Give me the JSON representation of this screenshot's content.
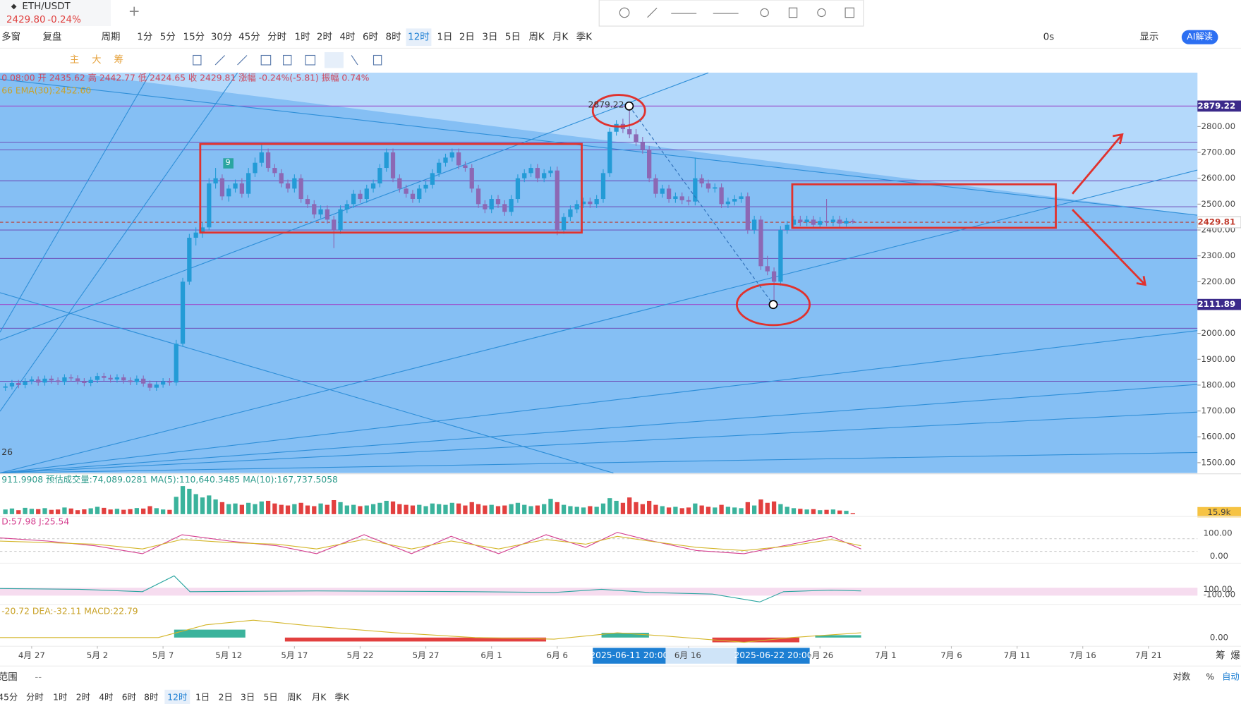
{
  "ui": {
    "tab": {
      "symbol": "ETH/USDT",
      "price": "2429.80",
      "change": "-0.24%"
    },
    "toolbar": {
      "multi": "多窗",
      "replay": "复盘",
      "period": "周期",
      "intervals": [
        "1分",
        "5分",
        "15分",
        "30分",
        "45分",
        "分时",
        "1时",
        "2时",
        "4时",
        "6时",
        "8时",
        "12时",
        "1日",
        "2日",
        "3日",
        "5日",
        "周K",
        "月K",
        "季K"
      ],
      "countdown": "0s",
      "display": "显示",
      "ai": "AI解读"
    },
    "tools": [
      "主",
      "大",
      "筹"
    ],
    "ohlc_info": "0 08:00  开 2435.62  高 2442.77  低 2424.65  收 2429.81  涨幅 -0.24%(-5.81)  振幅 0.74%",
    "ema_info": "66  EMA(30):2452.60",
    "marker": "9",
    "peak_label": "2879.22",
    "chart_note": "26",
    "volume_info": "911.9908  预估成交量:74,089.0281  MA(5):110,640.3485  MA(10):167,737.5058",
    "volume_axis_label": "15.9k",
    "kdj_info": "D:57.98  J:25.54",
    "kdj_ticks": [
      "100.00",
      "0.00"
    ],
    "wr_ticks": [
      "100.00",
      "-100.00"
    ],
    "macd_info": "-20.72  DEA:-32.11  MACD:22.79",
    "macd_tick": "0.00",
    "crosshair_x": [
      "2025-06-11 20:00",
      "2025-06-22 20:00"
    ],
    "axis_right": [
      "筹",
      "爆"
    ],
    "bottom": {
      "range": "范围",
      "dash": "--",
      "intervals": [
        "45分",
        "分时",
        "1时",
        "2时",
        "4时",
        "6时",
        "8时",
        "12时",
        "1日",
        "2日",
        "3日",
        "5日",
        "周K",
        "月K",
        "季K"
      ],
      "log": "对数",
      "pct": "%",
      "auto": "自动"
    }
  },
  "chart_data": {
    "type": "candlestick",
    "x": [
      -2,
      -1.5,
      -1,
      -0.5,
      0,
      0.5,
      1,
      1.5,
      2,
      2.5,
      3,
      3.5,
      4,
      4.5,
      5,
      5.5,
      6,
      6.5,
      7,
      7.5,
      8,
      8.5,
      9,
      9.5,
      10,
      10.5,
      11,
      11.5,
      12,
      12.5,
      13,
      13.5,
      14,
      14.5,
      15,
      15.5,
      16,
      16.5,
      17,
      17.5,
      18,
      18.5,
      19,
      19.5,
      20,
      20.5,
      21,
      21.5,
      22,
      22.5,
      23,
      23.5,
      24,
      24.5,
      25,
      25.5,
      26,
      26.5,
      27,
      27.5,
      28,
      28.5,
      29,
      29.5,
      30,
      30.5,
      31,
      31.5,
      32,
      32.5,
      33,
      33.5,
      34,
      34.5,
      35,
      35.5,
      36,
      36.5,
      37,
      37.5,
      38,
      38.5,
      39,
      39.5,
      40,
      40.5,
      41,
      41.5,
      42,
      42.5,
      43,
      43.5,
      44,
      44.5,
      45,
      45.5,
      46,
      46.5,
      47,
      47.5,
      48,
      48.5,
      49,
      49.5,
      50,
      50.5,
      51,
      51.5,
      52,
      52.5,
      53,
      53.5,
      54,
      54.5,
      55,
      55.5,
      56,
      56.5,
      57,
      57.5,
      58,
      58.5,
      59,
      59.5,
      60,
      60.5,
      61,
      61.5,
      62,
      62.5
    ],
    "ohlc": [
      [
        1790,
        1807,
        1778,
        1795
      ],
      [
        1795,
        1820,
        1783,
        1808
      ],
      [
        1808,
        1820,
        1788,
        1800
      ],
      [
        1800,
        1827,
        1788,
        1815
      ],
      [
        1815,
        1834,
        1803,
        1822
      ],
      [
        1822,
        1834,
        1798,
        1810
      ],
      [
        1810,
        1837,
        1798,
        1825
      ],
      [
        1825,
        1837,
        1806,
        1818
      ],
      [
        1818,
        1830,
        1800,
        1812
      ],
      [
        1812,
        1842,
        1800,
        1830
      ],
      [
        1830,
        1842,
        1814,
        1826
      ],
      [
        1826,
        1838,
        1803,
        1815
      ],
      [
        1815,
        1827,
        1796,
        1808
      ],
      [
        1808,
        1832,
        1796,
        1820
      ],
      [
        1820,
        1847,
        1808,
        1835
      ],
      [
        1835,
        1847,
        1816,
        1828
      ],
      [
        1828,
        1840,
        1810,
        1822
      ],
      [
        1822,
        1842,
        1810,
        1830
      ],
      [
        1830,
        1842,
        1806,
        1818
      ],
      [
        1818,
        1830,
        1800,
        1812
      ],
      [
        1812,
        1837,
        1800,
        1825
      ],
      [
        1825,
        1837,
        1794,
        1806
      ],
      [
        1806,
        1818,
        1778,
        1790
      ],
      [
        1790,
        1814,
        1778,
        1802
      ],
      [
        1802,
        1827,
        1790,
        1815
      ],
      [
        1815,
        1827,
        1798,
        1810
      ],
      [
        1810,
        1975,
        1798,
        1960
      ],
      [
        1960,
        2215,
        1948,
        2200
      ],
      [
        2200,
        2385,
        2188,
        2370
      ],
      [
        2370,
        2410,
        2340,
        2390
      ],
      [
        2390,
        2430,
        2370,
        2410
      ],
      [
        2410,
        2600,
        2398,
        2580
      ],
      [
        2580,
        2640,
        2560,
        2600
      ],
      [
        2600,
        2615,
        2515,
        2530
      ],
      [
        2530,
        2575,
        2510,
        2560
      ],
      [
        2560,
        2595,
        2545,
        2580
      ],
      [
        2580,
        2600,
        2525,
        2540
      ],
      [
        2540,
        2640,
        2525,
        2620
      ],
      [
        2620,
        2680,
        2605,
        2660
      ],
      [
        2660,
        2730,
        2645,
        2700
      ],
      [
        2700,
        2715,
        2625,
        2640
      ],
      [
        2640,
        2655,
        2605,
        2620
      ],
      [
        2620,
        2635,
        2565,
        2580
      ],
      [
        2580,
        2595,
        2545,
        2560
      ],
      [
        2560,
        2615,
        2545,
        2600
      ],
      [
        2600,
        2615,
        2505,
        2520
      ],
      [
        2520,
        2535,
        2485,
        2500
      ],
      [
        2500,
        2515,
        2445,
        2460
      ],
      [
        2460,
        2495,
        2445,
        2480
      ],
      [
        2480,
        2495,
        2425,
        2440
      ],
      [
        2440,
        2455,
        2330,
        2400
      ],
      [
        2400,
        2495,
        2385,
        2480
      ],
      [
        2480,
        2515,
        2465,
        2500
      ],
      [
        2500,
        2555,
        2485,
        2540
      ],
      [
        2540,
        2555,
        2505,
        2520
      ],
      [
        2520,
        2575,
        2505,
        2560
      ],
      [
        2560,
        2595,
        2545,
        2580
      ],
      [
        2580,
        2655,
        2565,
        2640
      ],
      [
        2640,
        2715,
        2625,
        2700
      ],
      [
        2700,
        2715,
        2585,
        2600
      ],
      [
        2600,
        2615,
        2545,
        2560
      ],
      [
        2560,
        2575,
        2525,
        2540
      ],
      [
        2540,
        2555,
        2505,
        2520
      ],
      [
        2520,
        2575,
        2505,
        2560
      ],
      [
        2560,
        2590,
        2545,
        2575
      ],
      [
        2575,
        2635,
        2560,
        2620
      ],
      [
        2620,
        2675,
        2605,
        2660
      ],
      [
        2660,
        2695,
        2645,
        2680
      ],
      [
        2680,
        2715,
        2665,
        2700
      ],
      [
        2700,
        2715,
        2635,
        2650
      ],
      [
        2650,
        2665,
        2625,
        2640
      ],
      [
        2640,
        2655,
        2545,
        2560
      ],
      [
        2560,
        2575,
        2485,
        2500
      ],
      [
        2500,
        2515,
        2465,
        2480
      ],
      [
        2480,
        2535,
        2465,
        2520
      ],
      [
        2520,
        2535,
        2485,
        2500
      ],
      [
        2500,
        2515,
        2455,
        2470
      ],
      [
        2470,
        2535,
        2455,
        2520
      ],
      [
        2520,
        2615,
        2505,
        2600
      ],
      [
        2600,
        2635,
        2585,
        2620
      ],
      [
        2620,
        2655,
        2605,
        2640
      ],
      [
        2640,
        2655,
        2585,
        2600
      ],
      [
        2600,
        2635,
        2585,
        2620
      ],
      [
        2620,
        2645,
        2605,
        2630
      ],
      [
        2630,
        2645,
        2380,
        2400
      ],
      [
        2400,
        2465,
        2385,
        2450
      ],
      [
        2450,
        2495,
        2435,
        2480
      ],
      [
        2480,
        2515,
        2465,
        2500
      ],
      [
        2500,
        2525,
        2485,
        2510
      ],
      [
        2510,
        2525,
        2485,
        2500
      ],
      [
        2500,
        2535,
        2485,
        2520
      ],
      [
        2520,
        2635,
        2505,
        2620
      ],
      [
        2620,
        2795,
        2605,
        2780
      ],
      [
        2780,
        2825,
        2765,
        2810
      ],
      [
        2810,
        2830,
        2775,
        2790
      ],
      [
        2790,
        2879.22,
        2755,
        2770
      ],
      [
        2770,
        2790,
        2725,
        2740
      ],
      [
        2740,
        2760,
        2695,
        2710
      ],
      [
        2710,
        2725,
        2585,
        2600
      ],
      [
        2600,
        2615,
        2525,
        2540
      ],
      [
        2540,
        2575,
        2525,
        2560
      ],
      [
        2560,
        2575,
        2505,
        2520
      ],
      [
        2520,
        2545,
        2505,
        2530
      ],
      [
        2530,
        2545,
        2500,
        2515
      ],
      [
        2515,
        2530,
        2495,
        2510
      ],
      [
        2510,
        2680,
        2495,
        2600
      ],
      [
        2600,
        2615,
        2565,
        2580
      ],
      [
        2580,
        2595,
        2545,
        2560
      ],
      [
        2560,
        2580,
        2545,
        2565
      ],
      [
        2565,
        2580,
        2485,
        2500
      ],
      [
        2500,
        2525,
        2485,
        2510
      ],
      [
        2510,
        2535,
        2495,
        2520
      ],
      [
        2520,
        2545,
        2505,
        2530
      ],
      [
        2530,
        2545,
        2385,
        2400
      ],
      [
        2400,
        2455,
        2385,
        2440
      ],
      [
        2440,
        2455,
        2245,
        2260
      ],
      [
        2260,
        2300,
        2225,
        2240
      ],
      [
        2240,
        2255,
        2111.89,
        2200
      ],
      [
        2200,
        2415,
        2185,
        2400
      ],
      [
        2400,
        2435,
        2385,
        2420
      ],
      [
        2420,
        2455,
        2405,
        2440
      ],
      [
        2440,
        2455,
        2415,
        2430
      ],
      [
        2430,
        2455,
        2415,
        2440
      ],
      [
        2440,
        2455,
        2405,
        2420
      ],
      [
        2420,
        2450,
        2405,
        2435
      ],
      [
        2435,
        2520,
        2415,
        2430
      ],
      [
        2430,
        2455,
        2415,
        2440
      ],
      [
        2440,
        2455,
        2410,
        2425
      ],
      [
        2425,
        2447,
        2413,
        2435.62
      ],
      [
        2435.62,
        2442.77,
        2424.65,
        2429.81
      ]
    ],
    "volume": [
      70,
      85,
      60,
      95,
      80,
      75,
      90,
      65,
      70,
      100,
      85,
      60,
      72,
      88,
      110,
      95,
      70,
      80,
      66,
      75,
      92,
      84,
      120,
      90,
      70,
      65,
      260,
      420,
      380,
      300,
      250,
      280,
      220,
      180,
      150,
      160,
      140,
      170,
      150,
      190,
      200,
      160,
      140,
      130,
      150,
      170,
      130,
      120,
      160,
      140,
      210,
      180,
      130,
      140,
      120,
      130,
      150,
      170,
      200,
      190,
      150,
      140,
      130,
      140,
      120,
      160,
      150,
      140,
      170,
      160,
      130,
      180,
      150,
      130,
      140,
      120,
      130,
      150,
      170,
      140,
      120,
      130,
      150,
      230,
      180,
      140,
      120,
      110,
      100,
      120,
      110,
      160,
      240,
      200,
      170,
      250,
      180,
      150,
      200,
      140,
      120,
      100,
      110,
      90,
      100,
      160,
      130,
      110,
      100,
      140,
      110,
      100,
      90,
      180,
      130,
      220,
      170,
      190,
      150,
      110,
      90,
      80,
      70,
      75,
      60,
      65,
      70,
      55,
      50,
      15.9
    ],
    "volume_ylim": [
      0,
      450
    ],
    "up_color": "#239bd6",
    "down_color": "#8c68b4",
    "volume_up_color": "#3bb39c",
    "volume_down_color": "#e2403f",
    "xlim": [
      -2.41,
      88.73
    ],
    "ylim": [
      1460,
      3008
    ],
    "xticks": [
      {
        "value": 0,
        "label": "4月 27"
      },
      {
        "value": 5,
        "label": "5月 2"
      },
      {
        "value": 10,
        "label": "5月 7"
      },
      {
        "value": 15,
        "label": "5月 12"
      },
      {
        "value": 20,
        "label": "5月 17"
      },
      {
        "value": 25,
        "label": "5月 22"
      },
      {
        "value": 30,
        "label": "5月 27"
      },
      {
        "value": 35,
        "label": "6月 1"
      },
      {
        "value": 40,
        "label": "6月 6"
      },
      {
        "value": 50,
        "label": "6月 16"
      },
      {
        "value": 60,
        "label": "6月 26"
      },
      {
        "value": 65,
        "label": "7月 1"
      },
      {
        "value": 70,
        "label": "7月 6"
      },
      {
        "value": 75,
        "label": "7月 11"
      },
      {
        "value": 80,
        "label": "7月 16"
      },
      {
        "value": 85,
        "label": "7月 21"
      }
    ],
    "yticks": [
      {
        "value": 1500,
        "label": "1500.00"
      },
      {
        "value": 1600,
        "label": "1600.00"
      },
      {
        "value": 1700,
        "label": "1700.00"
      },
      {
        "value": 1800,
        "label": "1800.00"
      },
      {
        "value": 1900,
        "label": "1900.00"
      },
      {
        "value": 2000,
        "label": "2000.00"
      },
      {
        "value": 2100,
        "label": "2100.00"
      },
      {
        "value": 2200,
        "label": "2200.00"
      },
      {
        "value": 2300,
        "label": "2300.00"
      },
      {
        "value": 2400,
        "label": "2400.00"
      },
      {
        "value": 2500,
        "label": "2500.00"
      },
      {
        "value": 2600,
        "label": "2600.00"
      },
      {
        "value": 2700,
        "label": "2700.00"
      },
      {
        "value": 2800,
        "label": "2800.00"
      }
    ],
    "price_lines": [
      2740,
      2710,
      2590,
      2490,
      2400,
      2290,
      2020,
      1815
    ],
    "price_line_color": "#6a3fb0",
    "marked_prices": [
      2879.22,
      2111.89
    ],
    "last_price": 2429.81
  }
}
